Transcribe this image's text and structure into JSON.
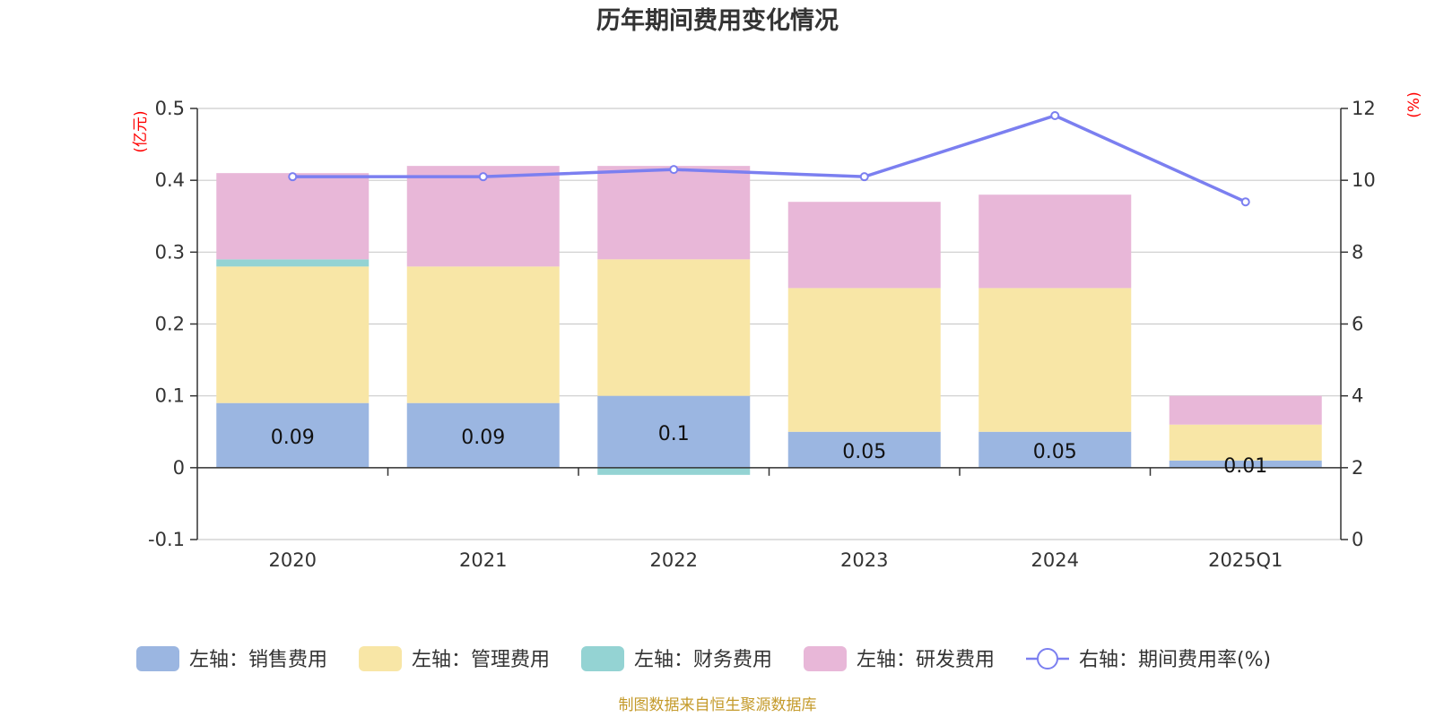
{
  "chart_data": {
    "type": "bar",
    "stacked": true,
    "title": "历年期间费用变化情况",
    "categories": [
      "2020",
      "2021",
      "2022",
      "2023",
      "2024",
      "2025Q1"
    ],
    "left_axis": {
      "unit": "(亿元)",
      "ylim": [
        -0.1,
        0.5
      ],
      "ticks": [
        "-0.1",
        "0",
        "0.1",
        "0.2",
        "0.3",
        "0.4",
        "0.5"
      ]
    },
    "right_axis": {
      "unit": "(%)",
      "ylim": [
        0,
        12
      ],
      "ticks": [
        "0",
        "2",
        "4",
        "6",
        "8",
        "10",
        "12"
      ]
    },
    "series": [
      {
        "name": "左轴：销售费用",
        "color": "#9bb6e1",
        "axis": "left",
        "values": [
          0.09,
          0.09,
          0.1,
          0.05,
          0.05,
          0.01
        ],
        "labels": [
          "0.09",
          "0.09",
          "0.1",
          "0.05",
          "0.05",
          "0.01"
        ]
      },
      {
        "name": "左轴：管理费用",
        "color": "#f8e6a6",
        "axis": "left",
        "values": [
          0.19,
          0.19,
          0.19,
          0.2,
          0.2,
          0.05
        ]
      },
      {
        "name": "左轴：财务费用",
        "color": "#94d3d3",
        "axis": "left",
        "values": [
          0.01,
          0.0,
          -0.01,
          0.0,
          0.0,
          0.0
        ]
      },
      {
        "name": "左轴：研发费用",
        "color": "#e8b7d8",
        "axis": "left",
        "values": [
          0.12,
          0.14,
          0.13,
          0.12,
          0.13,
          0.04
        ]
      },
      {
        "name": "右轴：期间费用率(%)",
        "color": "#7b7ff0",
        "axis": "right",
        "type": "line",
        "values": [
          10.1,
          10.1,
          10.3,
          10.1,
          11.8,
          9.4
        ]
      }
    ],
    "legend_position": "bottom",
    "grid": true
  },
  "footer": "制图数据来自恒生聚源数据库"
}
